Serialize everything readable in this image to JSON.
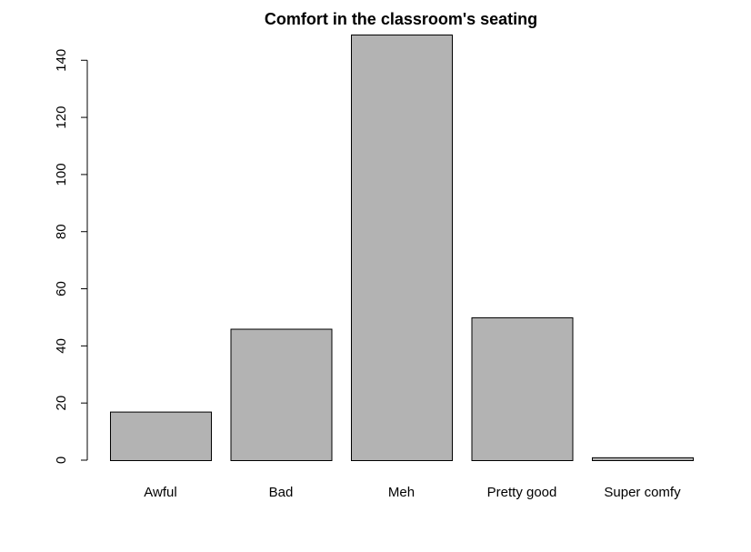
{
  "chart_data": {
    "type": "bar",
    "title": "Comfort in the classroom's seating",
    "xlabel": "",
    "ylabel": "",
    "categories": [
      "Awful",
      "Bad",
      "Meh",
      "Pretty good",
      "Super comfy"
    ],
    "values": [
      17,
      46,
      149,
      50,
      1
    ],
    "ylim": [
      0,
      149
    ],
    "yticks": [
      0,
      20,
      40,
      60,
      80,
      100,
      120,
      140
    ],
    "ytick_labels": [
      "0",
      "20",
      "40",
      "60",
      "80",
      "100",
      "120",
      "140"
    ],
    "grid": false,
    "legend": "none",
    "bar_color": "#b3b3b3",
    "bar_edge_color": "#000000"
  }
}
